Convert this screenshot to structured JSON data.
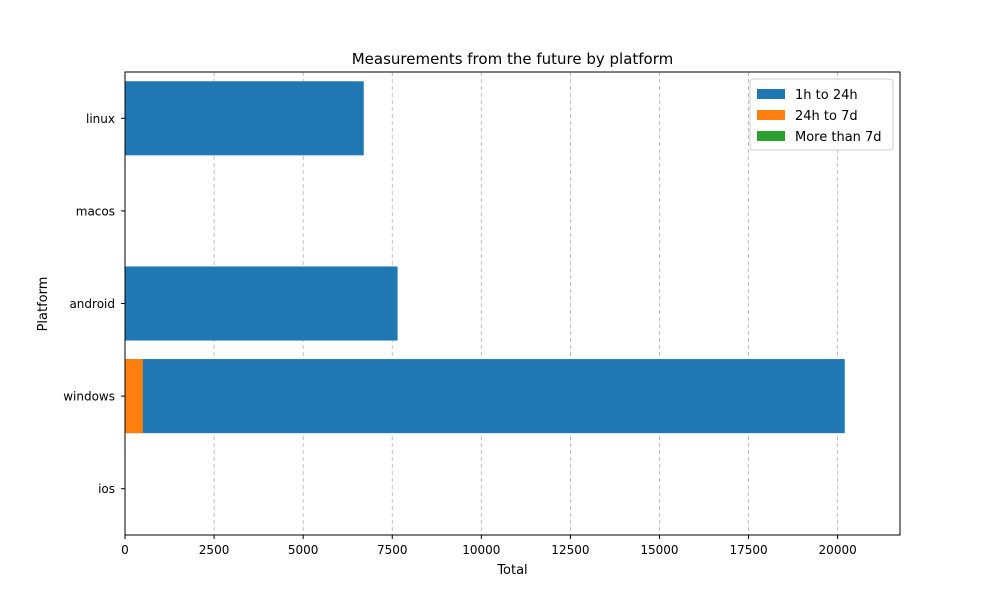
{
  "chart_data": {
    "type": "bar",
    "orientation": "horizontal",
    "stacked": true,
    "title": "Measurements from the future by platform",
    "xlabel": "Total",
    "ylabel": "Platform",
    "categories": [
      "linux",
      "macos",
      "android",
      "windows",
      "ios"
    ],
    "series": [
      {
        "name": "1h to 24h",
        "color": "#1f77b4",
        "values": [
          6700,
          0,
          7650,
          20200,
          0
        ]
      },
      {
        "name": "24h to 7d",
        "color": "#ff7f0e",
        "values": [
          0,
          0,
          0,
          500,
          0
        ]
      },
      {
        "name": "More than 7d",
        "color": "#2ca02c",
        "values": [
          0,
          0,
          0,
          0,
          0
        ]
      }
    ],
    "xlim": [
      0,
      21750
    ],
    "xticks": [
      0,
      2500,
      5000,
      7500,
      10000,
      12500,
      15000,
      17500,
      20000
    ],
    "grid": "x-dashed",
    "legend_position": "top-right"
  }
}
